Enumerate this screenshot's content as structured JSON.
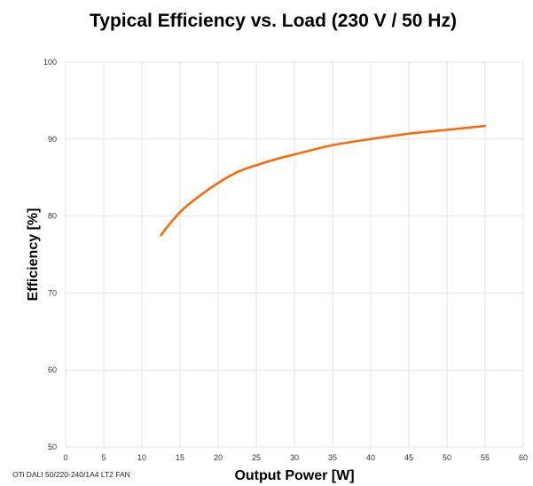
{
  "chart_data": {
    "type": "line",
    "title": "Typical Efficiency vs. Load (230 V / 50 Hz)",
    "xlabel": "Output Power [W]",
    "ylabel": "Efficiency [%]",
    "xlim": [
      0,
      60
    ],
    "ylim": [
      50,
      100
    ],
    "xticks": [
      "0",
      "5",
      "10",
      "15",
      "20",
      "25",
      "30",
      "35",
      "40",
      "45",
      "50",
      "55",
      "60"
    ],
    "yticks": [
      "50",
      "60",
      "70",
      "80",
      "90",
      "100"
    ],
    "grid": true,
    "series": [
      {
        "color": "#ff6600",
        "x": [
          12.5,
          13.5,
          15,
          17,
          20,
          22.5,
          25,
          28,
          30,
          35,
          40,
          45,
          50,
          55
        ],
        "y": [
          77.5,
          78.8,
          80.5,
          82.2,
          84.3,
          85.7,
          86.6,
          87.5,
          88.0,
          89.2,
          90.0,
          90.7,
          91.2,
          91.7
        ]
      }
    ],
    "footnote": "OTi DALI 50/220-240/1A4 LT2 FAN"
  }
}
